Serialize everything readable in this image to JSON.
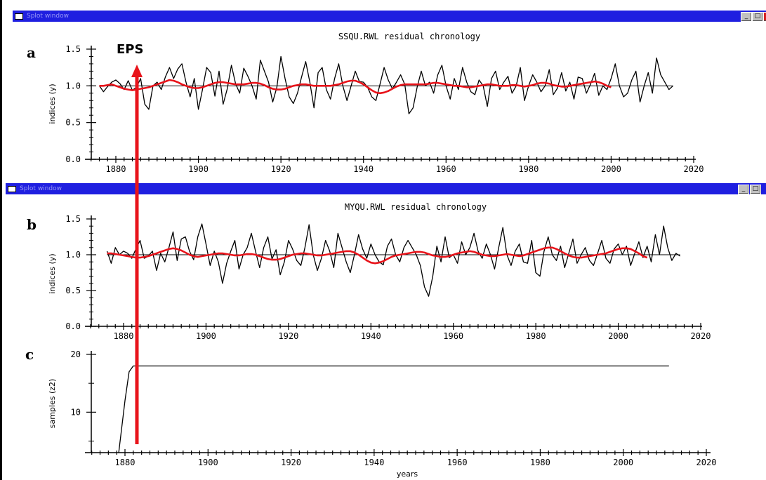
{
  "windows": [
    {
      "title": "Splot window"
    },
    {
      "title": "Splot window"
    }
  ],
  "annotation": {
    "label": "EPS",
    "year": 1882,
    "color": "#e8141b"
  },
  "colors": {
    "titlebar": "#1f1fe0",
    "smooth": "#e8141b",
    "series": "#000000"
  },
  "chart_data": [
    {
      "type": "line",
      "panel_letter": "a",
      "title": "SSQU.RWL residual chronology",
      "xlabel": "",
      "ylabel": "indices (y)",
      "xlim": [
        1870,
        2020
      ],
      "ylim": [
        0.0,
        1.5
      ],
      "x_ticks": [
        1880,
        1900,
        1920,
        1940,
        1960,
        1980,
        2000,
        2020
      ],
      "y_ticks": [
        0.0,
        0.5,
        1.0,
        1.5
      ],
      "y_tick_labels": [
        "0.0",
        "0.5",
        "1.0",
        "1.5"
      ],
      "reference_line": 1.0,
      "series": [
        {
          "role": "index",
          "x_start": 1876,
          "x_step": 1,
          "values": [
            1.0,
            0.92,
            0.99,
            1.05,
            1.08,
            1.03,
            0.95,
            1.07,
            0.94,
            0.98,
            1.1,
            0.75,
            0.68,
            1.0,
            1.05,
            0.95,
            1.12,
            1.25,
            1.1,
            1.23,
            1.3,
            1.05,
            0.85,
            1.1,
            0.68,
            0.95,
            1.25,
            1.18,
            0.86,
            1.2,
            0.75,
            0.96,
            1.28,
            1.03,
            0.9,
            1.24,
            1.13,
            1.0,
            0.82,
            1.35,
            1.2,
            1.05,
            0.78,
            0.98,
            1.4,
            1.1,
            0.85,
            0.76,
            0.9,
            1.12,
            1.33,
            1.05,
            0.7,
            1.18,
            1.25,
            0.95,
            0.82,
            1.1,
            1.3,
            1.0,
            0.8,
            1.0,
            1.2,
            1.06,
            1.05,
            0.98,
            0.85,
            0.8,
            1.02,
            1.25,
            1.08,
            0.96,
            1.05,
            1.15,
            1.02,
            0.62,
            0.7,
            0.98,
            1.2,
            1.0,
            1.05,
            0.9,
            1.15,
            1.28,
            1.0,
            0.82,
            1.1,
            0.95,
            1.25,
            1.05,
            0.92,
            0.88,
            1.08,
            1.0,
            0.72,
            1.1,
            1.2,
            0.95,
            1.05,
            1.13,
            0.9,
            1.0,
            1.25,
            0.8,
            1.0,
            1.15,
            1.05,
            0.92,
            1.0,
            1.22,
            0.88,
            0.97,
            1.18,
            0.93,
            1.05,
            0.82,
            1.12,
            1.1,
            0.9,
            1.02,
            1.17,
            0.87,
            1.0,
            0.95,
            1.1,
            1.3,
            1.0,
            0.85,
            0.9,
            1.08,
            1.2,
            0.78,
            1.0,
            1.18,
            0.9,
            1.38,
            1.15,
            1.05,
            0.95,
            1.0
          ]
        },
        {
          "role": "smoothed",
          "x_start": 1876,
          "x_step": 1,
          "values": [
            1.0,
            1.0,
            1.01,
            1.02,
            1.0,
            0.98,
            0.96,
            0.95,
            0.94,
            0.95,
            0.96,
            0.97,
            0.98,
            1.0,
            1.02,
            1.04,
            1.06,
            1.08,
            1.07,
            1.05,
            1.02,
            1.0,
            0.98,
            0.97,
            0.97,
            0.98,
            1.0,
            1.02,
            1.04,
            1.05,
            1.05,
            1.04,
            1.03,
            1.02,
            1.02,
            1.02,
            1.03,
            1.04,
            1.04,
            1.03,
            1.01,
            0.98,
            0.96,
            0.95,
            0.95,
            0.96,
            0.98,
            1.0,
            1.01,
            1.02,
            1.02,
            1.01,
            1.0,
            1.0,
            1.0,
            1.0,
            1.0,
            1.01,
            1.02,
            1.04,
            1.06,
            1.07,
            1.07,
            1.05,
            1.02,
            0.98,
            0.94,
            0.91,
            0.9,
            0.91,
            0.93,
            0.96,
            0.99,
            1.01,
            1.02,
            1.02,
            1.02,
            1.02,
            1.02,
            1.02,
            1.03,
            1.04,
            1.04,
            1.03,
            1.02,
            1.01,
            1.0,
            1.0,
            0.99,
            0.98,
            0.98,
            0.99,
            1.0,
            1.01,
            1.02,
            1.02,
            1.01,
            1.0,
            1.0,
            1.0,
            1.01,
            1.01,
            1.0,
            0.99,
            1.0,
            1.01,
            1.03,
            1.04,
            1.04,
            1.03,
            1.01,
            1.0,
            0.99,
            0.99,
            1.0,
            1.01,
            1.02,
            1.03,
            1.04,
            1.05,
            1.06,
            1.05,
            1.03,
            1.0,
            0.98
          ]
        }
      ]
    },
    {
      "type": "line",
      "panel_letter": "b",
      "title": "MYQU.RWL residual chronology",
      "xlabel": "",
      "ylabel": "indices (y)",
      "xlim": [
        1870,
        2020
      ],
      "ylim": [
        0.0,
        1.5
      ],
      "x_ticks": [
        1880,
        1900,
        1920,
        1940,
        1960,
        1980,
        2000,
        2020
      ],
      "y_ticks": [
        0.0,
        0.5,
        1.0,
        1.5
      ],
      "y_tick_labels": [
        "0.0",
        "0.5",
        "1.0",
        "1.5"
      ],
      "reference_line": 1.0,
      "series": [
        {
          "role": "index",
          "x_start": 1876,
          "x_step": 1,
          "values": [
            1.05,
            0.88,
            1.1,
            1.0,
            1.05,
            1.02,
            0.95,
            1.08,
            1.2,
            0.95,
            0.98,
            1.05,
            0.78,
            1.02,
            0.9,
            1.1,
            1.32,
            0.92,
            1.22,
            1.25,
            1.05,
            0.93,
            1.25,
            1.43,
            1.15,
            0.85,
            1.05,
            0.9,
            0.6,
            0.88,
            1.05,
            1.2,
            0.8,
            1.0,
            1.1,
            1.3,
            1.05,
            0.82,
            1.1,
            1.25,
            0.94,
            1.07,
            0.72,
            0.9,
            1.2,
            1.08,
            0.92,
            0.85,
            1.1,
            1.42,
            1.0,
            0.78,
            0.95,
            1.2,
            1.05,
            0.82,
            1.3,
            1.1,
            0.9,
            0.75,
            1.0,
            1.28,
            1.08,
            0.95,
            1.15,
            1.0,
            0.9,
            0.86,
            1.12,
            1.22,
            1.0,
            0.9,
            1.1,
            1.2,
            1.1,
            1.0,
            0.85,
            0.55,
            0.42,
            0.7,
            1.12,
            0.9,
            1.25,
            0.96,
            1.0,
            0.88,
            1.18,
            1.0,
            1.1,
            1.3,
            1.05,
            0.95,
            1.15,
            1.0,
            0.8,
            1.1,
            1.38,
            1.0,
            0.85,
            1.05,
            1.15,
            0.9,
            0.88,
            1.2,
            0.75,
            0.7,
            1.05,
            1.25,
            1.0,
            0.92,
            1.12,
            0.82,
            1.02,
            1.22,
            0.88,
            1.0,
            1.1,
            0.92,
            0.85,
            1.02,
            1.2,
            0.95,
            0.88,
            1.08,
            1.15,
            1.0,
            1.12,
            0.85,
            1.02,
            1.18,
            0.96,
            1.12,
            0.9,
            1.28,
            1.0,
            1.4,
            1.1,
            0.92,
            1.02,
            0.98
          ]
        },
        {
          "role": "smoothed",
          "x_start": 1876,
          "x_step": 1,
          "values": [
            1.02,
            1.02,
            1.01,
            1.0,
            0.99,
            0.98,
            0.97,
            0.96,
            0.96,
            0.97,
            0.98,
            1.0,
            1.02,
            1.04,
            1.06,
            1.08,
            1.09,
            1.08,
            1.06,
            1.03,
            1.0,
            0.98,
            0.97,
            0.98,
            0.99,
            1.0,
            1.01,
            1.02,
            1.02,
            1.01,
            1.0,
            0.99,
            0.99,
            1.0,
            1.01,
            1.01,
            1.0,
            0.98,
            0.96,
            0.94,
            0.93,
            0.93,
            0.94,
            0.96,
            0.98,
            1.0,
            1.01,
            1.02,
            1.02,
            1.01,
            1.0,
            0.99,
            0.99,
            1.0,
            1.01,
            1.02,
            1.03,
            1.04,
            1.05,
            1.05,
            1.03,
            1.0,
            0.96,
            0.92,
            0.89,
            0.88,
            0.89,
            0.91,
            0.94,
            0.97,
            0.99,
            1.0,
            1.01,
            1.02,
            1.03,
            1.04,
            1.04,
            1.03,
            1.01,
            0.99,
            0.98,
            0.97,
            0.97,
            0.98,
            1.0,
            1.02,
            1.03,
            1.04,
            1.05,
            1.04,
            1.02,
            1.0,
            0.99,
            0.98,
            0.98,
            0.99,
            1.0,
            1.01,
            1.0,
            0.99,
            0.98,
            0.99,
            1.01,
            1.03,
            1.05,
            1.07,
            1.09,
            1.1,
            1.1,
            1.08,
            1.05,
            1.02,
            0.99,
            0.97,
            0.96,
            0.96,
            0.97,
            0.98,
            0.99,
            1.0,
            1.01,
            1.02,
            1.04,
            1.06,
            1.08,
            1.09,
            1.09,
            1.08,
            1.05,
            1.02,
            0.98,
            0.96
          ]
        }
      ]
    },
    {
      "type": "line",
      "panel_letter": "c",
      "title": "",
      "xlabel": "years",
      "ylabel": "samples (z2)",
      "xlim": [
        1870,
        2020
      ],
      "ylim": [
        3,
        20
      ],
      "x_ticks": [
        1880,
        1900,
        1920,
        1940,
        1960,
        1980,
        2000,
        2020
      ],
      "y_ticks": [
        10,
        20
      ],
      "y_tick_labels": [
        "10",
        "20"
      ],
      "series": [
        {
          "role": "samples",
          "x": [
            1878.5,
            1880,
            1881,
            1882,
            2011
          ],
          "values": [
            3,
            12,
            17,
            18,
            18
          ]
        }
      ]
    }
  ]
}
